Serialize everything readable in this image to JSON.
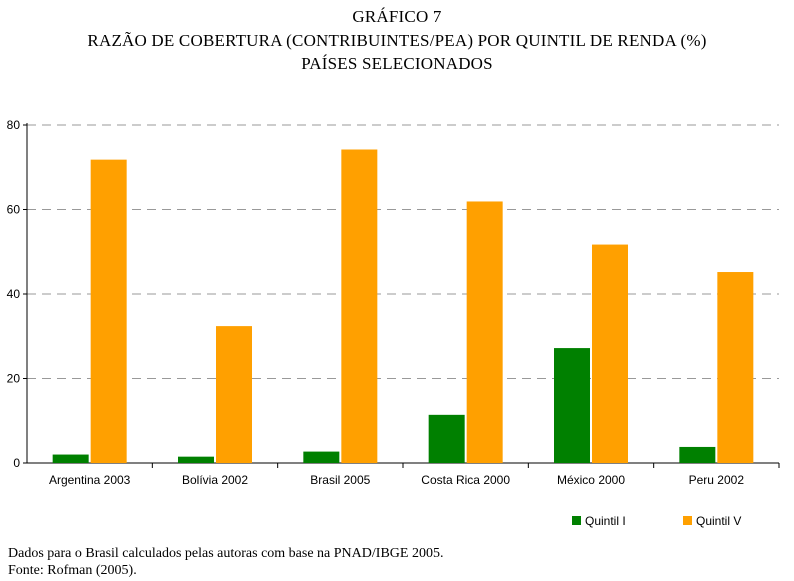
{
  "title_lines": [
    "GRÁFICO 7",
    "RAZÃO DE COBERTURA (CONTRIBUINTES/PEA) POR QUINTIL DE RENDA (%)",
    "PAÍSES SELECIONADOS"
  ],
  "notes": [
    "Dados para o Brasil calculados pelas autoras com base na PNAD/IBGE 2005.",
    "Fonte: Rofman (2005)."
  ],
  "colors": {
    "quintil_i": "#008000",
    "quintil_v": "#ffa000",
    "grid": "#999999"
  },
  "chart_data": {
    "type": "bar",
    "title": "RAZÃO DE COBERTURA (CONTRIBUINTES/PEA) POR QUINTIL DE RENDA (%)",
    "xlabel": "",
    "ylabel": "",
    "ylim": [
      0,
      80
    ],
    "yticks": [
      0,
      20,
      40,
      60,
      80
    ],
    "grid": true,
    "legend": "bottom-right",
    "categories": [
      "Argentina 2003",
      "Bolívia 2002",
      "Brasil 2005",
      "Costa Rica 2000",
      "México 2000",
      "Peru 2002"
    ],
    "series": [
      {
        "name": "Quintil I",
        "values": [
          2.0,
          1.5,
          2.7,
          11.4,
          27.2,
          3.8
        ]
      },
      {
        "name": "Quintil V",
        "values": [
          71.8,
          32.4,
          74.2,
          61.9,
          51.7,
          45.2
        ]
      }
    ]
  }
}
